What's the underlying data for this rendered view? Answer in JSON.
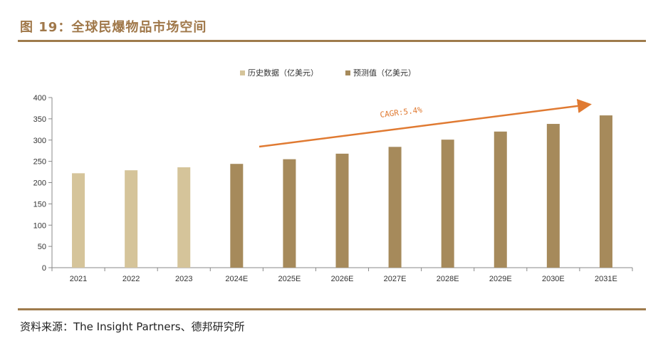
{
  "header": {
    "title": "图 19：全球民爆物品市场空间"
  },
  "footer": {
    "source": "资料来源：The Insight Partners、德邦研究所"
  },
  "chart_data": {
    "type": "bar",
    "title": "图 19：全球民爆物品市场空间",
    "categories": [
      "2021",
      "2022",
      "2023",
      "2024E",
      "2025E",
      "2026E",
      "2027E",
      "2028E",
      "2029E",
      "2030E",
      "2031E"
    ],
    "series": [
      {
        "name": "历史数据（亿美元）",
        "values": [
          222,
          229,
          236,
          null,
          null,
          null,
          null,
          null,
          null,
          null,
          null
        ],
        "color": "#d5c49a"
      },
      {
        "name": "预测值（亿美元）",
        "values": [
          null,
          null,
          null,
          244,
          255,
          268,
          284,
          301,
          320,
          338,
          358
        ],
        "color": "#a68a5b"
      }
    ],
    "ylim": [
      0,
      400
    ],
    "yticks": [
      0,
      50,
      100,
      150,
      200,
      250,
      300,
      350,
      400
    ],
    "xlabel": "",
    "ylabel": "",
    "legend_position": "top-center",
    "annotation": {
      "text": "CAGR:5.4%",
      "color": "#e07a32"
    }
  }
}
